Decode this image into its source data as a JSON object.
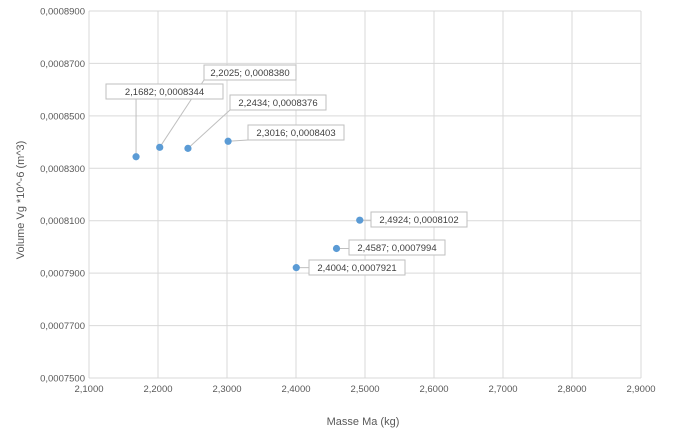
{
  "chart_data": {
    "type": "scatter",
    "title": "",
    "xlabel": "Masse Ma (kg)",
    "ylabel": "Volume Vg *10^-6 (m^3)",
    "xlim": [
      2.1,
      2.9
    ],
    "ylim": [
      0.00075,
      0.00089
    ],
    "grid": true,
    "legend": "none",
    "point_color": "#5b9bd5",
    "x_ticks": [
      {
        "value": 2.1,
        "label": "2,1000"
      },
      {
        "value": 2.2,
        "label": "2,2000"
      },
      {
        "value": 2.3,
        "label": "2,3000"
      },
      {
        "value": 2.4,
        "label": "2,4000"
      },
      {
        "value": 2.5,
        "label": "2,5000"
      },
      {
        "value": 2.6,
        "label": "2,6000"
      },
      {
        "value": 2.7,
        "label": "2,7000"
      },
      {
        "value": 2.8,
        "label": "2,8000"
      },
      {
        "value": 2.9,
        "label": "2,9000"
      }
    ],
    "y_ticks": [
      {
        "value": 0.00075,
        "label": "0,0007500"
      },
      {
        "value": 0.00077,
        "label": "0,0007700"
      },
      {
        "value": 0.00079,
        "label": "0,0007900"
      },
      {
        "value": 0.00081,
        "label": "0,0008100"
      },
      {
        "value": 0.00083,
        "label": "0,0008300"
      },
      {
        "value": 0.00085,
        "label": "0,0008500"
      },
      {
        "value": 0.00087,
        "label": "0,0008700"
      },
      {
        "value": 0.00089,
        "label": "0,0008900"
      }
    ],
    "points": [
      {
        "x": 2.1682,
        "y": 0.0008344,
        "label": "2,1682; 0,0008344"
      },
      {
        "x": 2.2025,
        "y": 0.000838,
        "label": "2,2025; 0,0008380"
      },
      {
        "x": 2.2434,
        "y": 0.0008376,
        "label": "2,2434; 0,0008376"
      },
      {
        "x": 2.3016,
        "y": 0.0008403,
        "label": "2,3016; 0,0008403"
      },
      {
        "x": 2.4924,
        "y": 0.0008102,
        "label": "2,4924; 0,0008102"
      },
      {
        "x": 2.4587,
        "y": 0.0007994,
        "label": "2,4587; 0,0007994"
      },
      {
        "x": 2.4004,
        "y": 0.0007921,
        "label": "2,4004; 0,0007921"
      }
    ]
  }
}
